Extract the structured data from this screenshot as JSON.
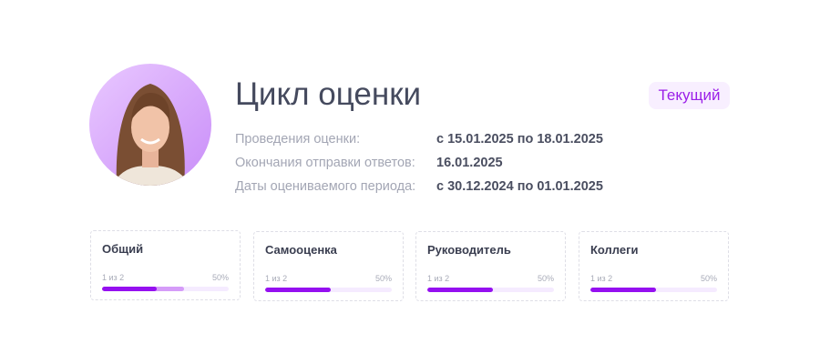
{
  "header": {
    "title": "Цикл оценки",
    "status_badge": "Текущий"
  },
  "details": [
    {
      "label": "Проведения оценки:",
      "value": "с 15.01.2025 по 18.01.2025"
    },
    {
      "label": "Окончания отправки ответов:",
      "value": "16.01.2025"
    },
    {
      "label": "Даты оцениваемого периода:",
      "value": "с 30.12.2024 по 01.01.2025"
    }
  ],
  "cards": [
    {
      "name": "Общий",
      "count": "1 из 2",
      "percent_label": "50%",
      "progress": 0.43,
      "secondary_progress": 0.65
    },
    {
      "name": "Самооценка",
      "count": "1 из 2",
      "percent_label": "50%",
      "progress": 0.52
    },
    {
      "name": "Руководитель",
      "count": "1 из 2",
      "percent_label": "50%",
      "progress": 0.52
    },
    {
      "name": "Коллеги",
      "count": "1 из 2",
      "percent_label": "50%",
      "progress": 0.52
    }
  ],
  "colors": {
    "accent": "#9510f0",
    "accent_light": "#d59cf8",
    "track": "#f5ebff",
    "badge_bg": "#f8efff"
  }
}
